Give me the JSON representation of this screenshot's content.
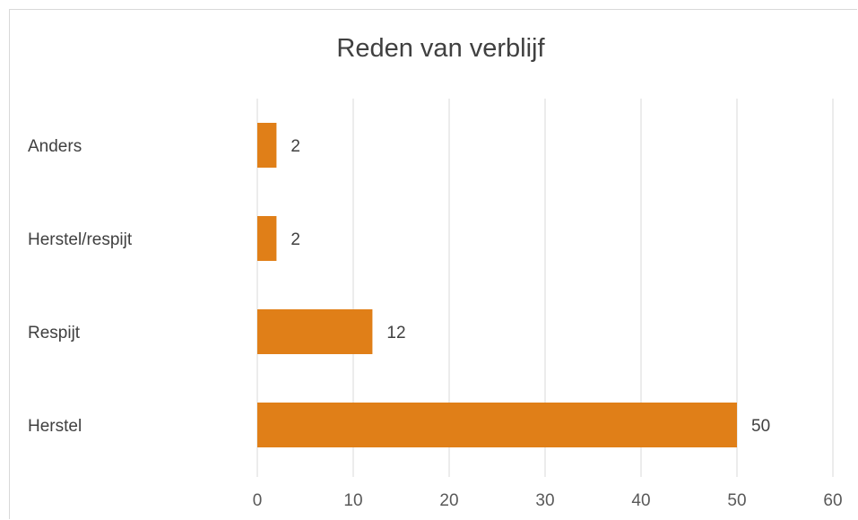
{
  "chart_data": {
    "type": "bar",
    "orientation": "horizontal",
    "title": "Reden van verblijf",
    "categories": [
      "Anders",
      "Herstel/respijt",
      "Respijt",
      "Herstel"
    ],
    "values": [
      2,
      2,
      12,
      50
    ],
    "x_ticks": [
      "0",
      "10",
      "20",
      "30",
      "40",
      "50",
      "60"
    ],
    "xlim": [
      0,
      60
    ],
    "grid": "vertical",
    "legend": "none",
    "bar_color": "#e07f18",
    "grid_color": "#d9d9d9"
  }
}
